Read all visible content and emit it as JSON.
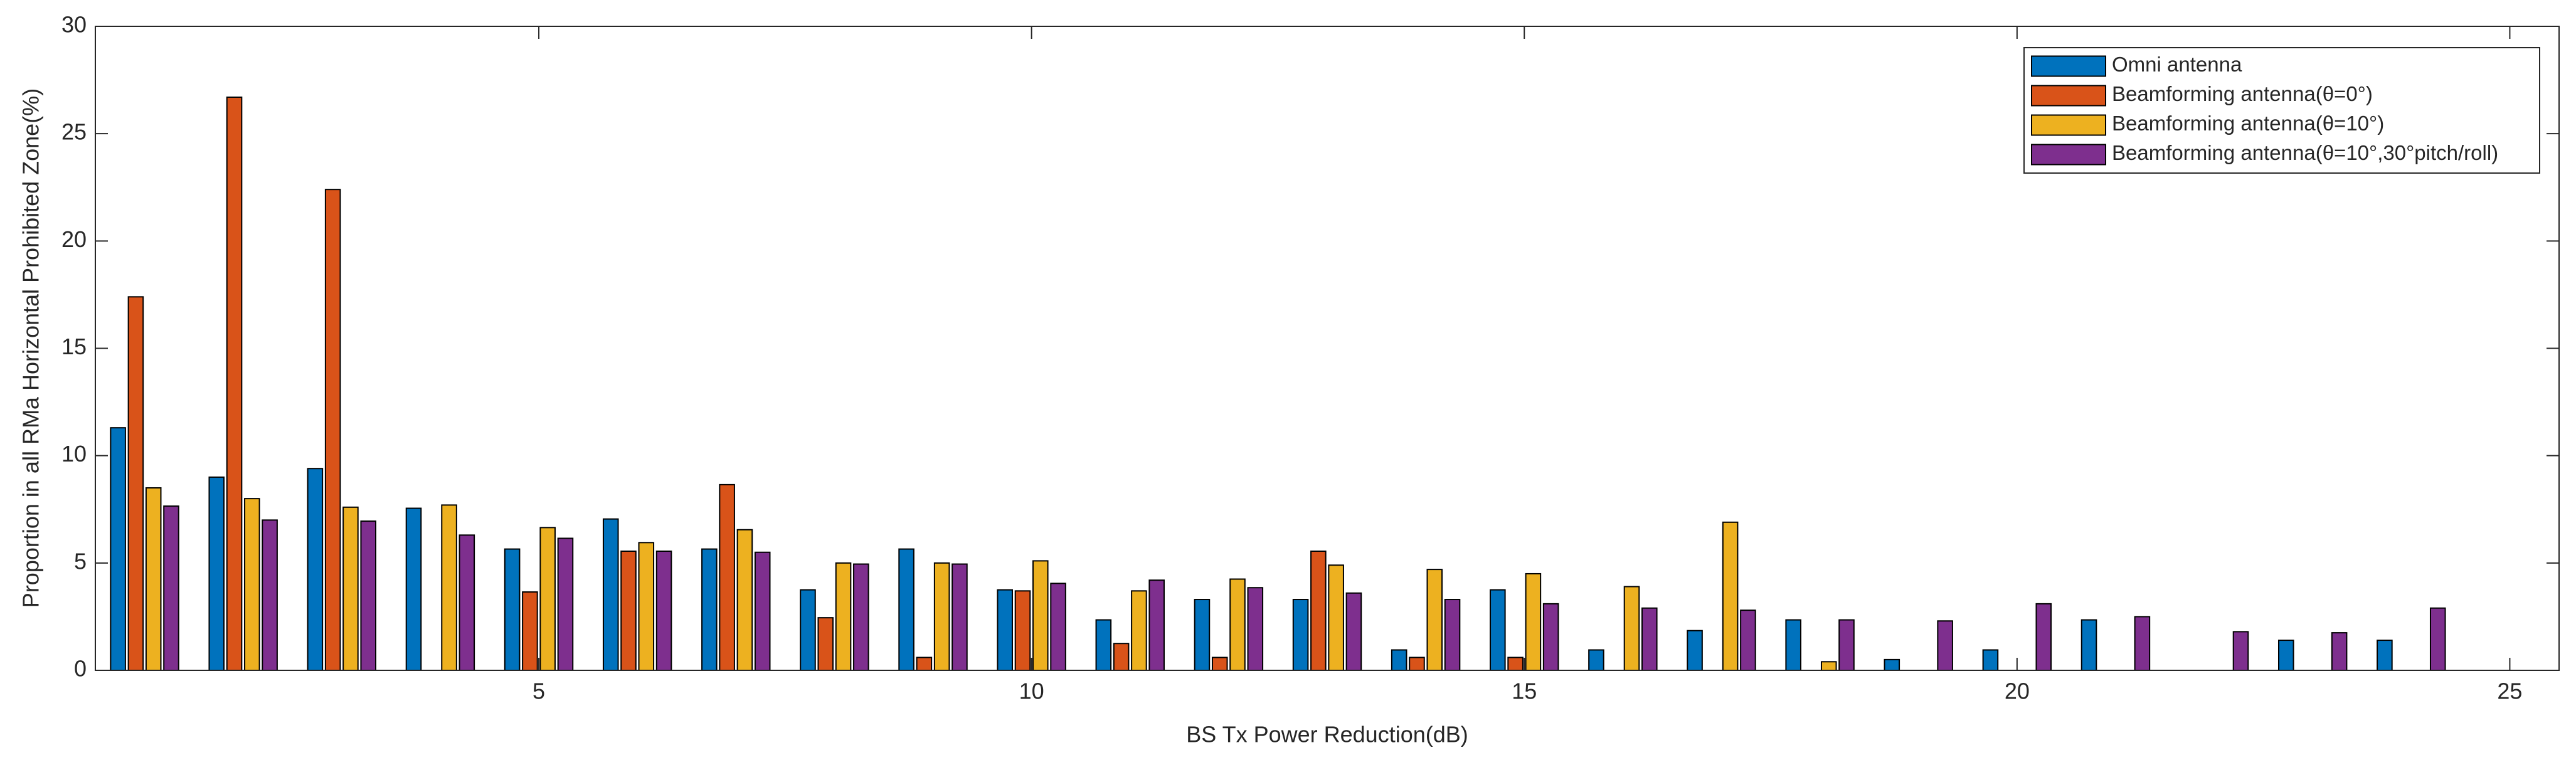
{
  "chart_data": {
    "type": "bar",
    "xlabel": "BS Tx Power Reduction(dB)",
    "ylabel": "Proportion in all RMa Horizontal Prohibited Zone(%)",
    "x": [
      1,
      2,
      3,
      4,
      5,
      6,
      7,
      8,
      9,
      10,
      11,
      12,
      13,
      14,
      15,
      16,
      17,
      18,
      19,
      20,
      21,
      22,
      23,
      24
    ],
    "series": [
      {
        "name": "Omni antenna",
        "color": "#0072BD",
        "values": [
          11.3,
          9.0,
          9.4,
          7.55,
          5.65,
          7.05,
          5.65,
          3.75,
          5.65,
          3.75,
          2.35,
          3.3,
          3.3,
          0.95,
          3.75,
          0.95,
          1.85,
          2.35,
          0.5,
          0.95,
          2.35,
          0,
          1.4,
          1.4
        ]
      },
      {
        "name": "Beamforming antenna(θ=0°)",
        "color": "#D95319",
        "values": [
          17.4,
          26.7,
          22.4,
          0,
          3.65,
          5.55,
          8.65,
          2.45,
          0.6,
          3.7,
          1.25,
          0.6,
          5.55,
          0.6,
          0.6,
          0,
          0,
          0,
          0,
          0,
          0,
          0,
          0,
          0
        ]
      },
      {
        "name": "Beamforming antenna(θ=10°)",
        "color": "#EDB120",
        "values": [
          8.5,
          8.0,
          7.6,
          7.7,
          6.65,
          5.95,
          6.55,
          5.0,
          5.0,
          5.1,
          3.7,
          4.25,
          4.9,
          4.7,
          4.5,
          3.9,
          6.9,
          0.4,
          0,
          0,
          0,
          0,
          0,
          0
        ]
      },
      {
        "name": "Beamforming antenna(θ=10°,30°pitch/roll)",
        "color": "#7E2F8E",
        "values": [
          7.65,
          7.0,
          6.95,
          6.3,
          6.15,
          5.55,
          5.5,
          4.95,
          4.95,
          4.05,
          4.2,
          3.85,
          3.6,
          3.3,
          3.1,
          2.9,
          2.8,
          2.35,
          2.3,
          3.1,
          2.5,
          1.8,
          1.75,
          2.9
        ]
      }
    ],
    "xlim": [
      0.5,
      25.5
    ],
    "xticks": [
      5,
      10,
      15,
      20,
      25
    ],
    "ylim": [
      0,
      30
    ],
    "yticks": [
      0,
      5,
      10,
      15,
      20,
      25,
      30
    ],
    "legend": "northeast"
  }
}
